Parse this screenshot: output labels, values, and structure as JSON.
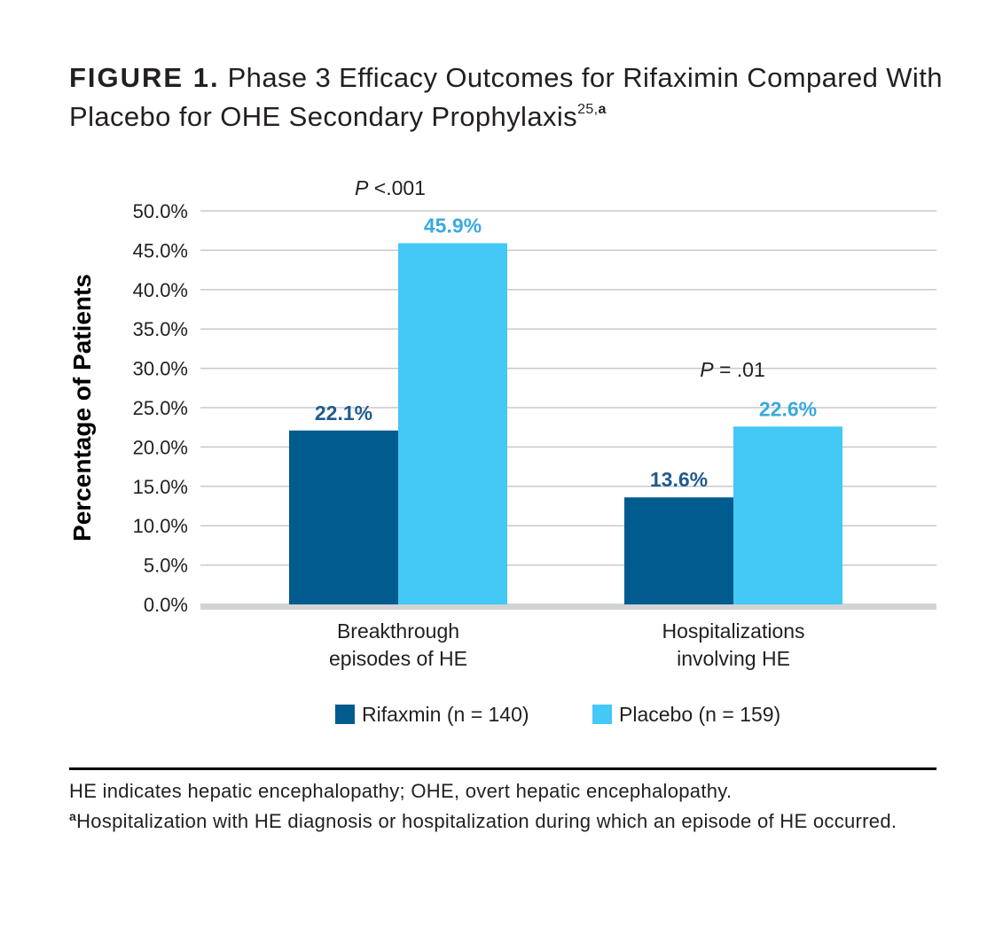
{
  "title": {
    "figure_label": "FIGURE 1.",
    "text": "Phase 3 Efficacy Outcomes for Rifaximin Compared With Placebo for OHE Secondary Prophylaxis",
    "superscript_ref": "25,",
    "superscript_note": "a"
  },
  "chart_data": {
    "type": "bar",
    "ylabel": "Percentage of Patients",
    "xlabel": "",
    "ylim": [
      0,
      50
    ],
    "yticks": [
      "0.0%",
      "5.0%",
      "10.0%",
      "15.0%",
      "20.0%",
      "25.0%",
      "30.0%",
      "35.0%",
      "40.0%",
      "45.0%",
      "50.0%"
    ],
    "grid": true,
    "categories": [
      [
        "Breakthrough",
        "episodes of HE"
      ],
      [
        "Hospitalizations",
        "involving HE"
      ]
    ],
    "series": [
      {
        "name": "Rifaxmin (n = 140)",
        "color": "#005b8f",
        "values": [
          22.1,
          13.6
        ],
        "labels": [
          "22.1%",
          "13.6%"
        ]
      },
      {
        "name": "Placebo (n = 159)",
        "color": "#44c8f5",
        "values": [
          45.9,
          22.6
        ],
        "labels": [
          "45.9%",
          "22.6%"
        ]
      }
    ],
    "annotations": [
      {
        "italic": "P",
        "text": " <.001",
        "category": 0
      },
      {
        "italic": "P",
        "text": " = .01",
        "category": 1
      }
    ],
    "legend_position": "bottom"
  },
  "footnotes": {
    "line1": "HE indicates hepatic encephalopathy; OHE, overt hepatic encephalopathy.",
    "line2_marker": "a",
    "line2": "Hospitalization with HE diagnosis or hospitalization during which an episode of HE occurred."
  },
  "colors": {
    "grid": "#c8c9cb",
    "axis": "#d1d3d4",
    "rifaxmin_label": "#1f5b8c",
    "placebo_label": "#3aa9df"
  }
}
